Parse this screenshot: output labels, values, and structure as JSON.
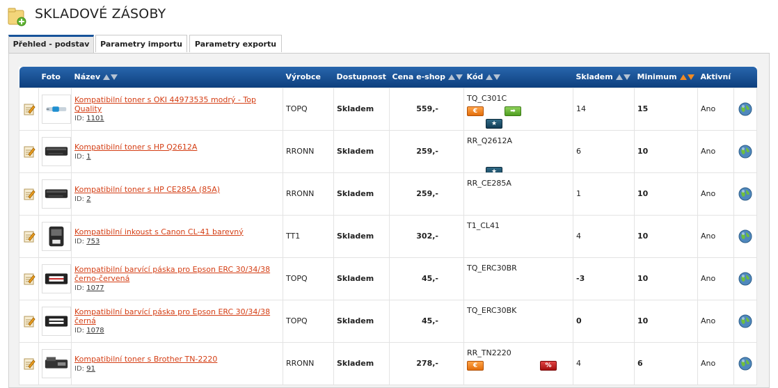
{
  "page": {
    "title": "SKLADOVÉ ZÁSOBY"
  },
  "tabs": [
    {
      "label": "Přehled - podstav",
      "active": true
    },
    {
      "label": "Parametry importu",
      "active": false
    },
    {
      "label": "Parametry exportu",
      "active": false
    }
  ],
  "table": {
    "headers": {
      "foto": "Foto",
      "nazev": "Název",
      "vyrobce": "Výrobce",
      "dostupnost": "Dostupnost",
      "cena": "Cena e-shop",
      "kod": "Kód",
      "skladem": "Skladem",
      "minimum": "Minimum",
      "aktivni": "Aktivní"
    },
    "id_label": "ID:",
    "rows": [
      {
        "name": "Kompatibilní toner s OKI 44973535 modrý - Top Quality",
        "id": "1101",
        "maker": "TOPQ",
        "availability": "Skladem",
        "price": "559,-",
        "code": "TQ_C301C",
        "stock": "14",
        "minimum": "15",
        "active": "Ano",
        "badges": [
          "euro",
          "arrow",
          "star"
        ],
        "photo": "toner-cyan",
        "stock_negative": false
      },
      {
        "name": "Kompatibilní toner s HP Q2612A",
        "id": "1",
        "maker": "RRONN",
        "availability": "Skladem",
        "price": "259,-",
        "code": "RR_Q2612A",
        "stock": "6",
        "minimum": "10",
        "active": "Ano",
        "badges": [
          "star"
        ],
        "photo": "toner-black",
        "stock_negative": false
      },
      {
        "name": "Kompatibilní toner s HP CE285A (85A)",
        "id": "2",
        "maker": "RRONN",
        "availability": "Skladem",
        "price": "259,-",
        "code": "RR_CE285A",
        "stock": "1",
        "minimum": "10",
        "active": "Ano",
        "badges": [],
        "photo": "toner-black",
        "stock_negative": false
      },
      {
        "name": "Kompatibilní inkoust s Canon CL-41 barevný",
        "id": "753",
        "maker": "TT1",
        "availability": "Skladem",
        "price": "302,-",
        "code": "T1_CL41",
        "stock": "4",
        "minimum": "10",
        "active": "Ano",
        "badges": [],
        "photo": "ink-cartridge",
        "stock_negative": false
      },
      {
        "name": "Kompatibilní barvící páska pro Epson ERC 30/34/38 černo-červená",
        "id": "1077",
        "maker": "TOPQ",
        "availability": "Skladem",
        "price": "45,-",
        "code": "TQ_ERC30BR",
        "stock": "-3",
        "minimum": "10",
        "active": "Ano",
        "badges": [],
        "photo": "ribbon-red",
        "stock_negative": true
      },
      {
        "name": "Kompatibilní barvící páska pro Epson ERC 30/34/38 černá",
        "id": "1078",
        "maker": "TOPQ",
        "availability": "Skladem",
        "price": "45,-",
        "code": "TQ_ERC30BK",
        "stock": "0",
        "minimum": "10",
        "active": "Ano",
        "badges": [],
        "photo": "ribbon-black",
        "stock_negative": true
      },
      {
        "name": "Kompatibilní toner s Brother TN-2220",
        "id": "91",
        "maker": "RRONN",
        "availability": "Skladem",
        "price": "278,-",
        "code": "RR_TN2220",
        "stock": "4",
        "minimum": "6",
        "active": "Ano",
        "badges": [
          "euro",
          "percent"
        ],
        "photo": "toner-brother",
        "stock_negative": false
      }
    ]
  },
  "icons": {
    "edit": "edit-note-icon",
    "status": "globe-icon",
    "euro_badge": "€",
    "arrow_badge": "➡",
    "star_badge": "★",
    "percent_badge": "%"
  },
  "colors": {
    "header_blue": "#1a4f8f",
    "link_orange": "#d43d13",
    "available_green": "#3cb512",
    "negative_red": "#e00000"
  }
}
